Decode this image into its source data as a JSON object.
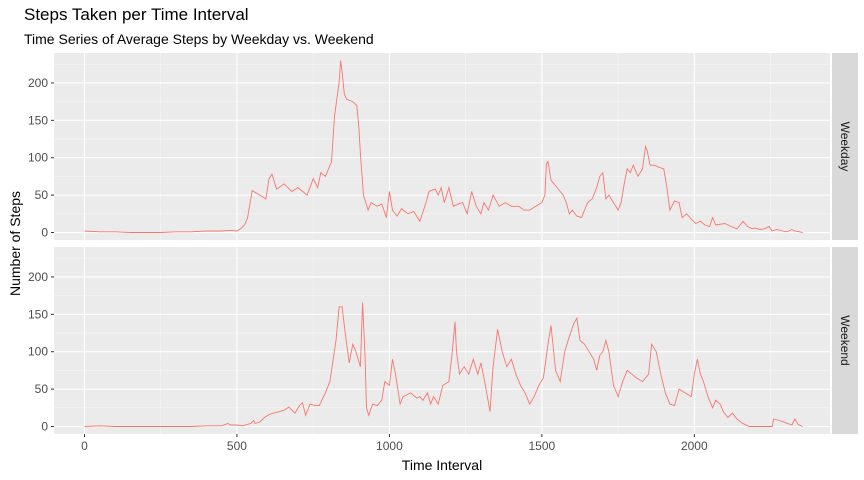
{
  "chart_data": {
    "type": "line",
    "title": "Steps Taken per Time Interval",
    "subtitle": "Time Series of Average Steps by Weekday vs. Weekend",
    "xlabel": "Time Interval",
    "ylabel": "Number of Steps",
    "xlim": [
      -100,
      2445
    ],
    "ylim": [
      -10,
      240
    ],
    "x_ticks": [
      0,
      500,
      1000,
      1500,
      2000
    ],
    "y_ticks": [
      0,
      50,
      100,
      150,
      200
    ],
    "grid": true,
    "line_color": "#F8766D",
    "panel_background": "#EBEBEB",
    "strip_background": "#D9D9D9",
    "facets": [
      {
        "label": "Weekday",
        "points": [
          [
            0,
            2
          ],
          [
            50,
            1
          ],
          [
            100,
            1
          ],
          [
            150,
            0
          ],
          [
            200,
            0
          ],
          [
            250,
            0
          ],
          [
            300,
            1
          ],
          [
            350,
            1
          ],
          [
            400,
            2
          ],
          [
            450,
            2
          ],
          [
            480,
            3
          ],
          [
            500,
            2
          ],
          [
            515,
            6
          ],
          [
            525,
            10
          ],
          [
            535,
            20
          ],
          [
            550,
            56
          ],
          [
            575,
            50
          ],
          [
            595,
            45
          ],
          [
            605,
            72
          ],
          [
            615,
            78
          ],
          [
            630,
            58
          ],
          [
            655,
            65
          ],
          [
            680,
            55
          ],
          [
            700,
            60
          ],
          [
            730,
            50
          ],
          [
            750,
            72
          ],
          [
            765,
            60
          ],
          [
            775,
            80
          ],
          [
            790,
            75
          ],
          [
            810,
            95
          ],
          [
            820,
            155
          ],
          [
            828,
            180
          ],
          [
            835,
            200
          ],
          [
            840,
            230
          ],
          [
            845,
            215
          ],
          [
            852,
            185
          ],
          [
            860,
            178
          ],
          [
            880,
            175
          ],
          [
            893,
            170
          ],
          [
            900,
            140
          ],
          [
            905,
            105
          ],
          [
            915,
            50
          ],
          [
            930,
            30
          ],
          [
            940,
            40
          ],
          [
            960,
            35
          ],
          [
            975,
            38
          ],
          [
            990,
            20
          ],
          [
            1000,
            55
          ],
          [
            1010,
            30
          ],
          [
            1025,
            22
          ],
          [
            1040,
            32
          ],
          [
            1060,
            25
          ],
          [
            1080,
            28
          ],
          [
            1100,
            15
          ],
          [
            1120,
            40
          ],
          [
            1130,
            55
          ],
          [
            1150,
            58
          ],
          [
            1160,
            50
          ],
          [
            1170,
            60
          ],
          [
            1180,
            40
          ],
          [
            1195,
            60
          ],
          [
            1210,
            35
          ],
          [
            1225,
            38
          ],
          [
            1240,
            40
          ],
          [
            1255,
            25
          ],
          [
            1270,
            55
          ],
          [
            1285,
            35
          ],
          [
            1300,
            25
          ],
          [
            1310,
            40
          ],
          [
            1325,
            30
          ],
          [
            1340,
            50
          ],
          [
            1360,
            35
          ],
          [
            1380,
            40
          ],
          [
            1400,
            35
          ],
          [
            1425,
            35
          ],
          [
            1440,
            30
          ],
          [
            1460,
            30
          ],
          [
            1480,
            35
          ],
          [
            1500,
            40
          ],
          [
            1510,
            50
          ],
          [
            1515,
            92
          ],
          [
            1520,
            95
          ],
          [
            1530,
            70
          ],
          [
            1550,
            60
          ],
          [
            1570,
            50
          ],
          [
            1580,
            40
          ],
          [
            1590,
            25
          ],
          [
            1600,
            30
          ],
          [
            1615,
            22
          ],
          [
            1630,
            20
          ],
          [
            1650,
            40
          ],
          [
            1665,
            45
          ],
          [
            1680,
            60
          ],
          [
            1690,
            75
          ],
          [
            1700,
            80
          ],
          [
            1710,
            45
          ],
          [
            1720,
            50
          ],
          [
            1735,
            40
          ],
          [
            1750,
            30
          ],
          [
            1760,
            40
          ],
          [
            1770,
            65
          ],
          [
            1780,
            85
          ],
          [
            1790,
            80
          ],
          [
            1800,
            90
          ],
          [
            1815,
            75
          ],
          [
            1830,
            85
          ],
          [
            1840,
            115
          ],
          [
            1845,
            110
          ],
          [
            1855,
            90
          ],
          [
            1870,
            90
          ],
          [
            1880,
            88
          ],
          [
            1900,
            85
          ],
          [
            1910,
            60
          ],
          [
            1920,
            30
          ],
          [
            1935,
            42
          ],
          [
            1950,
            40
          ],
          [
            1960,
            20
          ],
          [
            1975,
            25
          ],
          [
            1990,
            18
          ],
          [
            2005,
            12
          ],
          [
            2020,
            15
          ],
          [
            2035,
            10
          ],
          [
            2050,
            8
          ],
          [
            2060,
            20
          ],
          [
            2070,
            10
          ],
          [
            2100,
            12
          ],
          [
            2120,
            8
          ],
          [
            2140,
            5
          ],
          [
            2160,
            15
          ],
          [
            2175,
            8
          ],
          [
            2190,
            5
          ],
          [
            2200,
            6
          ],
          [
            2215,
            4
          ],
          [
            2230,
            5
          ],
          [
            2245,
            8
          ],
          [
            2255,
            2
          ],
          [
            2270,
            4
          ],
          [
            2290,
            2
          ],
          [
            2300,
            1
          ],
          [
            2310,
            2
          ],
          [
            2320,
            4
          ],
          [
            2330,
            2
          ],
          [
            2345,
            1
          ],
          [
            2355,
            0
          ]
        ]
      },
      {
        "label": "Weekend",
        "points": [
          [
            0,
            0
          ],
          [
            50,
            1
          ],
          [
            100,
            0
          ],
          [
            150,
            0
          ],
          [
            200,
            0
          ],
          [
            250,
            0
          ],
          [
            300,
            0
          ],
          [
            350,
            0
          ],
          [
            400,
            1
          ],
          [
            450,
            1
          ],
          [
            470,
            4
          ],
          [
            480,
            2
          ],
          [
            500,
            2
          ],
          [
            520,
            1
          ],
          [
            535,
            3
          ],
          [
            545,
            4
          ],
          [
            555,
            8
          ],
          [
            560,
            4
          ],
          [
            575,
            6
          ],
          [
            590,
            12
          ],
          [
            605,
            16
          ],
          [
            620,
            18
          ],
          [
            640,
            20
          ],
          [
            655,
            22
          ],
          [
            670,
            26
          ],
          [
            690,
            18
          ],
          [
            705,
            28
          ],
          [
            715,
            32
          ],
          [
            725,
            15
          ],
          [
            740,
            30
          ],
          [
            755,
            28
          ],
          [
            770,
            28
          ],
          [
            790,
            45
          ],
          [
            805,
            60
          ],
          [
            812,
            80
          ],
          [
            825,
            115
          ],
          [
            835,
            160
          ],
          [
            845,
            160
          ],
          [
            855,
            125
          ],
          [
            868,
            85
          ],
          [
            880,
            110
          ],
          [
            890,
            100
          ],
          [
            905,
            80
          ],
          [
            912,
            166
          ],
          [
            920,
            95
          ],
          [
            925,
            25
          ],
          [
            932,
            15
          ],
          [
            945,
            30
          ],
          [
            960,
            28
          ],
          [
            975,
            35
          ],
          [
            985,
            60
          ],
          [
            1000,
            55
          ],
          [
            1010,
            90
          ],
          [
            1020,
            70
          ],
          [
            1035,
            30
          ],
          [
            1045,
            40
          ],
          [
            1055,
            42
          ],
          [
            1070,
            45
          ],
          [
            1090,
            38
          ],
          [
            1100,
            40
          ],
          [
            1110,
            35
          ],
          [
            1125,
            45
          ],
          [
            1135,
            30
          ],
          [
            1145,
            40
          ],
          [
            1160,
            30
          ],
          [
            1175,
            55
          ],
          [
            1195,
            60
          ],
          [
            1205,
            95
          ],
          [
            1215,
            140
          ],
          [
            1220,
            100
          ],
          [
            1230,
            70
          ],
          [
            1245,
            80
          ],
          [
            1260,
            70
          ],
          [
            1275,
            90
          ],
          [
            1290,
            70
          ],
          [
            1300,
            85
          ],
          [
            1315,
            55
          ],
          [
            1330,
            20
          ],
          [
            1340,
            80
          ],
          [
            1355,
            130
          ],
          [
            1370,
            100
          ],
          [
            1385,
            80
          ],
          [
            1400,
            90
          ],
          [
            1415,
            70
          ],
          [
            1430,
            55
          ],
          [
            1445,
            45
          ],
          [
            1460,
            30
          ],
          [
            1475,
            40
          ],
          [
            1490,
            55
          ],
          [
            1505,
            65
          ],
          [
            1520,
            110
          ],
          [
            1530,
            135
          ],
          [
            1545,
            75
          ],
          [
            1560,
            60
          ],
          [
            1575,
            100
          ],
          [
            1590,
            120
          ],
          [
            1605,
            138
          ],
          [
            1615,
            145
          ],
          [
            1625,
            115
          ],
          [
            1640,
            110
          ],
          [
            1655,
            100
          ],
          [
            1670,
            90
          ],
          [
            1680,
            75
          ],
          [
            1690,
            95
          ],
          [
            1700,
            100
          ],
          [
            1710,
            115
          ],
          [
            1720,
            100
          ],
          [
            1735,
            55
          ],
          [
            1750,
            40
          ],
          [
            1765,
            60
          ],
          [
            1780,
            75
          ],
          [
            1795,
            70
          ],
          [
            1810,
            65
          ],
          [
            1830,
            60
          ],
          [
            1850,
            70
          ],
          [
            1860,
            110
          ],
          [
            1875,
            100
          ],
          [
            1890,
            70
          ],
          [
            1905,
            45
          ],
          [
            1920,
            30
          ],
          [
            1935,
            28
          ],
          [
            1950,
            50
          ],
          [
            1970,
            45
          ],
          [
            1990,
            40
          ],
          [
            2000,
            70
          ],
          [
            2010,
            90
          ],
          [
            2020,
            70
          ],
          [
            2030,
            60
          ],
          [
            2045,
            40
          ],
          [
            2060,
            25
          ],
          [
            2070,
            35
          ],
          [
            2085,
            30
          ],
          [
            2095,
            20
          ],
          [
            2110,
            12
          ],
          [
            2125,
            18
          ],
          [
            2140,
            10
          ],
          [
            2155,
            5
          ],
          [
            2165,
            3
          ],
          [
            2180,
            0
          ],
          [
            2200,
            0
          ],
          [
            2220,
            0
          ],
          [
            2240,
            0
          ],
          [
            2255,
            0
          ],
          [
            2260,
            10
          ],
          [
            2280,
            8
          ],
          [
            2300,
            5
          ],
          [
            2320,
            2
          ],
          [
            2330,
            10
          ],
          [
            2340,
            3
          ],
          [
            2350,
            1
          ],
          [
            2355,
            0
          ]
        ]
      }
    ]
  }
}
